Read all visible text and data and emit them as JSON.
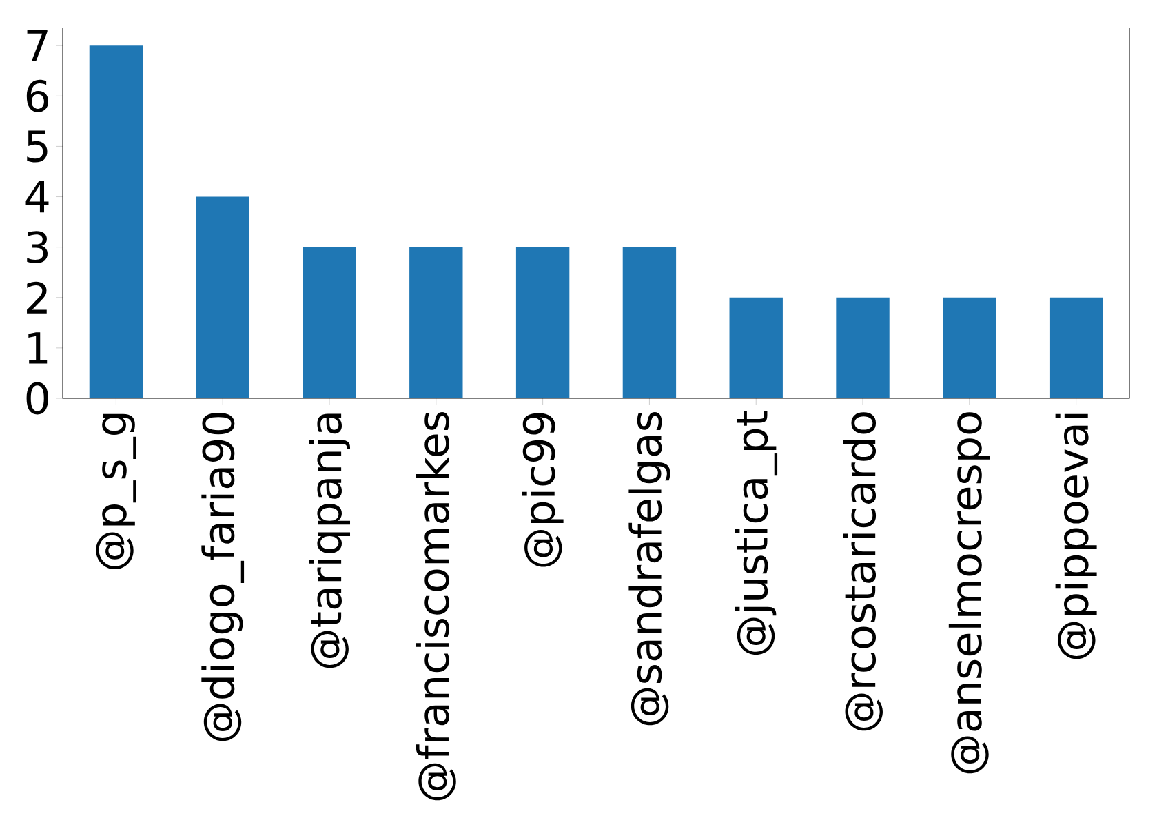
{
  "chart_data": {
    "type": "bar",
    "categories": [
      "@p_s_g",
      "@diogo_faria90",
      "@tariqpanja",
      "@franciscomarkes",
      "@pic99",
      "@sandrafelgas",
      "@justica_pt",
      "@rcostaricardo",
      "@anselmocrespo",
      "@pippoevai"
    ],
    "values": [
      7,
      4,
      3,
      3,
      3,
      3,
      2,
      2,
      2,
      2
    ],
    "color": "#1f77b4",
    "ylim": [
      0,
      7.35
    ],
    "yticks": [
      0,
      1,
      2,
      3,
      4,
      5,
      6,
      7
    ]
  }
}
